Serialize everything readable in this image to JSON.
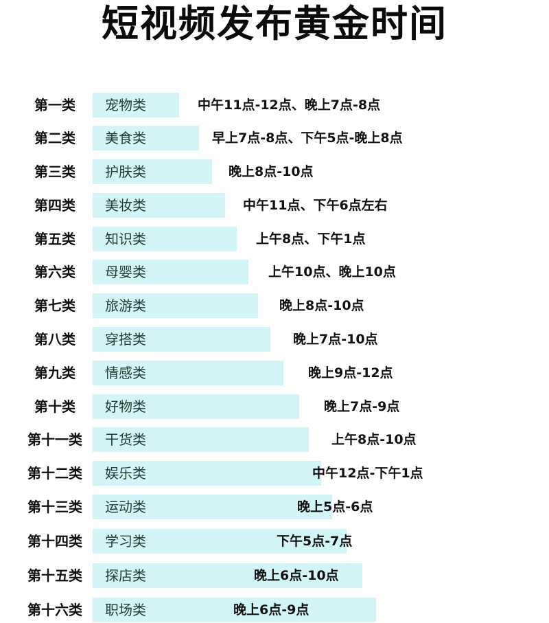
{
  "title": "短视频发布黄金时间",
  "bar_color": "#d4f5f7",
  "rows": [
    {
      "rank": "第一类",
      "category": "宠物类",
      "time": "中午11点-12点、晚上7点-8点"
    },
    {
      "rank": "第二类",
      "category": "美食类",
      "time": "早上7点-8点、下午5点-晚上8点"
    },
    {
      "rank": "第三类",
      "category": "护肤类",
      "time": "晚上8点-10点"
    },
    {
      "rank": "第四类",
      "category": "美妆类",
      "time": "中午11点、下午6点左右"
    },
    {
      "rank": "第五类",
      "category": "知识类",
      "time": "上午8点、下午1点"
    },
    {
      "rank": "第六类",
      "category": "母婴类",
      "time": "上午10点、晚上10点"
    },
    {
      "rank": "第七类",
      "category": "旅游类",
      "time": "晚上8点-10点"
    },
    {
      "rank": "第八类",
      "category": "穿搭类",
      "time": "晚上7点-10点"
    },
    {
      "rank": "第九类",
      "category": "情感类",
      "time": "晚上9点-12点"
    },
    {
      "rank": "第十类",
      "category": "好物类",
      "time": "晚上7点-9点"
    },
    {
      "rank": "第十一类",
      "category": "干货类",
      "time": "上午8点-10点"
    },
    {
      "rank": "第十二类",
      "category": "娱乐类",
      "time": "中午12点-下午1点"
    },
    {
      "rank": "第十三类",
      "category": "运动类",
      "time": "晚上5点-6点"
    },
    {
      "rank": "第十四类",
      "category": "学习类",
      "time": "下午5点-7点"
    },
    {
      "rank": "第十五类",
      "category": "探店类",
      "time": "晚上6点-10点"
    },
    {
      "rank": "第十六类",
      "category": "职场类",
      "time": "晚上6点-9点"
    }
  ]
}
